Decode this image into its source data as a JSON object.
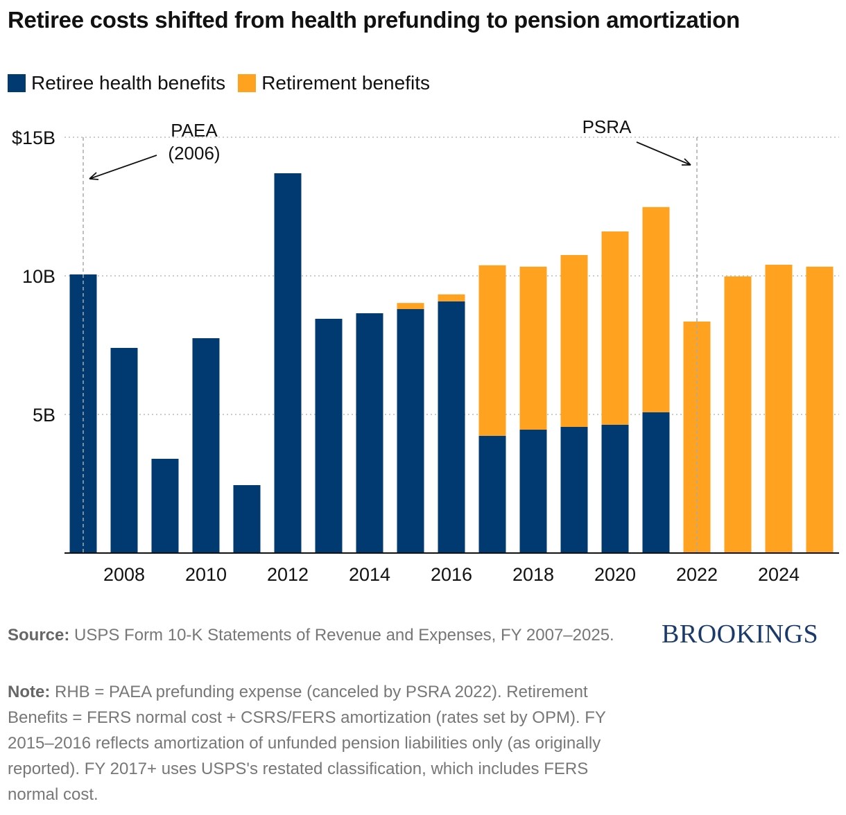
{
  "title": "Retiree costs shifted from health prefunding to pension amortization",
  "colors": {
    "health": "#003a70",
    "retirement": "#ffa21f"
  },
  "chart_data": {
    "type": "bar",
    "stacked": true,
    "title": "Retiree costs shifted from health prefunding to pension amortization",
    "categories": [
      2007,
      2008,
      2009,
      2010,
      2011,
      2012,
      2013,
      2014,
      2015,
      2016,
      2017,
      2018,
      2019,
      2020,
      2021,
      2022,
      2023,
      2024,
      2025
    ],
    "series": [
      {
        "name": "Retiree health benefits",
        "values": [
          10.05,
          7.4,
          3.4,
          7.75,
          2.45,
          13.7,
          8.45,
          8.65,
          8.8,
          9.08,
          4.23,
          4.45,
          4.55,
          4.63,
          5.08,
          0,
          0,
          0,
          0
        ]
      },
      {
        "name": "Retirement benefits",
        "values": [
          0,
          0,
          0,
          0,
          0,
          0,
          0,
          0,
          0.22,
          0.25,
          6.15,
          5.88,
          6.2,
          6.97,
          7.4,
          8.35,
          9.98,
          10.4,
          10.33
        ]
      }
    ],
    "ylim": [
      0,
      15
    ],
    "yticks": [
      {
        "v": 15,
        "label": "$15B"
      },
      {
        "v": 10,
        "label": "10B"
      },
      {
        "v": 5,
        "label": "5B"
      }
    ],
    "xtick_labels": [
      "2008",
      "2010",
      "2012",
      "2014",
      "2016",
      "2018",
      "2020",
      "2022",
      "2024"
    ],
    "grid": "horizontal dotted",
    "legend": "top-left",
    "annotations": [
      {
        "text": "PAEA",
        "text2": "(2006)",
        "year": 2007
      },
      {
        "text": "PSRA",
        "year": 2022
      }
    ]
  },
  "footer": {
    "source_label": "Source:",
    "source": "USPS Form 10-K Statements of Revenue and Expenses, FY 2007–2025.",
    "note_label": "Note:",
    "note": "RHB = PAEA prefunding expense (canceled by PSRA 2022). Retirement Benefits = FERS normal cost + CSRS/FERS amortization (rates set by OPM). FY 2015–2016 reflects amortization of unfunded pension liabilities only (as originally reported). FY 2017+ uses USPS's restated classification, which includes FERS normal cost.",
    "logo": "BROOKINGS"
  }
}
